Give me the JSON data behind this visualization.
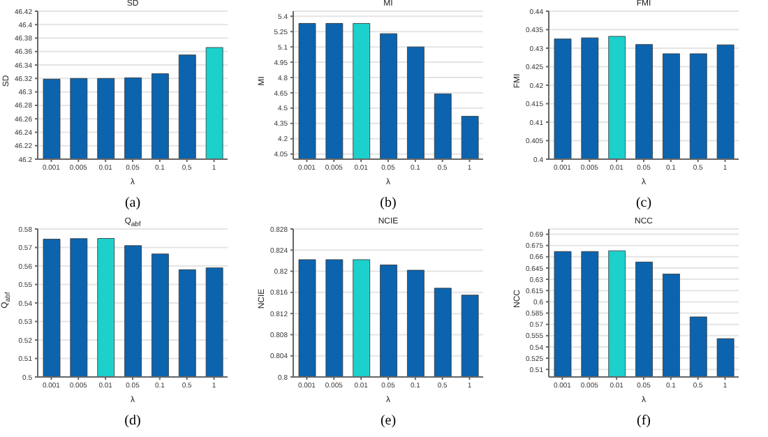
{
  "chart_data": [
    {
      "type": "bar",
      "title": "SD",
      "xlabel": "λ",
      "ylabel": "SD",
      "categories": [
        "0.001",
        "0.005",
        "0.01",
        "0.05",
        "0.1",
        "0.5",
        "1"
      ],
      "values": [
        46.319,
        46.32,
        46.32,
        46.321,
        46.327,
        46.355,
        46.366
      ],
      "colors": [
        "#0c64ae",
        "#0c64ae",
        "#0c64ae",
        "#0c64ae",
        "#0c64ae",
        "#0c64ae",
        "#1cd0cc"
      ],
      "ylim": [
        46.2,
        46.42
      ],
      "yticks": [
        46.2,
        46.22,
        46.24,
        46.26,
        46.28,
        46.3,
        46.32,
        46.34,
        46.36,
        46.38,
        46.4,
        46.42
      ],
      "grid": "y",
      "annotations": [
        "(a)"
      ]
    },
    {
      "type": "bar",
      "title": "MI",
      "xlabel": "λ",
      "ylabel": "MI",
      "categories": [
        "0.001",
        "0.005",
        "0.01",
        "0.05",
        "0.1",
        "0.5",
        "1"
      ],
      "values": [
        5.33,
        5.33,
        5.33,
        5.23,
        5.1,
        4.64,
        4.42
      ],
      "colors": [
        "#0c64ae",
        "#0c64ae",
        "#1cd0cc",
        "#0c64ae",
        "#0c64ae",
        "#0c64ae",
        "#0c64ae"
      ],
      "ylim": [
        4,
        5.45
      ],
      "yticks": [
        4.05,
        4.2,
        4.35,
        4.5,
        4.65,
        4.8,
        4.95,
        5.1,
        5.25,
        5.4
      ],
      "grid": "y",
      "annotations": [
        "(b)"
      ]
    },
    {
      "type": "bar",
      "title": "FMI",
      "xlabel": "λ",
      "ylabel": "FMI",
      "categories": [
        "0.001",
        "0.005",
        "0.01",
        "0.05",
        "0.1",
        "0.5",
        "1"
      ],
      "values": [
        0.4325,
        0.4328,
        0.4332,
        0.431,
        0.4285,
        0.4285,
        0.4309
      ],
      "colors": [
        "#0c64ae",
        "#0c64ae",
        "#1cd0cc",
        "#0c64ae",
        "#0c64ae",
        "#0c64ae",
        "#0c64ae"
      ],
      "ylim": [
        0.4,
        0.44
      ],
      "yticks": [
        0.4,
        0.405,
        0.41,
        0.415,
        0.42,
        0.425,
        0.43,
        0.435,
        0.44
      ],
      "grid": "y",
      "annotations": [
        "(c)"
      ]
    },
    {
      "type": "bar",
      "title": "Q$_{abf}$",
      "xlabel": "λ",
      "ylabel": "Q$_{abf}$",
      "categories": [
        "0.001",
        "0.005",
        "0.01",
        "0.05",
        "0.1",
        "0.5",
        "1"
      ],
      "values": [
        0.5745,
        0.5748,
        0.5749,
        0.571,
        0.5665,
        0.558,
        0.559
      ],
      "colors": [
        "#0c64ae",
        "#0c64ae",
        "#1cd0cc",
        "#0c64ae",
        "#0c64ae",
        "#0c64ae",
        "#0c64ae"
      ],
      "ylim": [
        0.5,
        0.58
      ],
      "yticks": [
        0.5,
        0.51,
        0.52,
        0.53,
        0.54,
        0.55,
        0.56,
        0.57,
        0.58
      ],
      "grid": "y",
      "annotations": [
        "(d)"
      ]
    },
    {
      "type": "bar",
      "title": "NCIE",
      "xlabel": "λ",
      "ylabel": "NCIE",
      "categories": [
        "0.001",
        "0.005",
        "0.01",
        "0.05",
        "0.1",
        "0.5",
        "1"
      ],
      "values": [
        0.8222,
        0.8222,
        0.8222,
        0.8212,
        0.8202,
        0.8168,
        0.8155
      ],
      "colors": [
        "#0c64ae",
        "#0c64ae",
        "#1cd0cc",
        "#0c64ae",
        "#0c64ae",
        "#0c64ae",
        "#0c64ae"
      ],
      "ylim": [
        0.8,
        0.828
      ],
      "yticks": [
        0.8,
        0.804,
        0.808,
        0.812,
        0.816,
        0.82,
        0.824,
        0.828
      ],
      "grid": "y",
      "annotations": [
        "(e)"
      ]
    },
    {
      "type": "bar",
      "title": "NCC",
      "xlabel": "λ",
      "ylabel": "NCC",
      "categories": [
        "0.001",
        "0.005",
        "0.01",
        "0.05",
        "0.1",
        "0.5",
        "1"
      ],
      "values": [
        0.667,
        0.667,
        0.668,
        0.653,
        0.637,
        0.58,
        0.551
      ],
      "colors": [
        "#0c64ae",
        "#0c64ae",
        "#1cd0cc",
        "#0c64ae",
        "#0c64ae",
        "#0c64ae",
        "#0c64ae"
      ],
      "ylim": [
        0.5,
        0.697
      ],
      "yticks": [
        0.51,
        0.525,
        0.54,
        0.555,
        0.57,
        0.585,
        0.6,
        0.615,
        0.63,
        0.645,
        0.66,
        0.675,
        0.69
      ],
      "grid": "y",
      "annotations": [
        "(f)"
      ]
    }
  ]
}
